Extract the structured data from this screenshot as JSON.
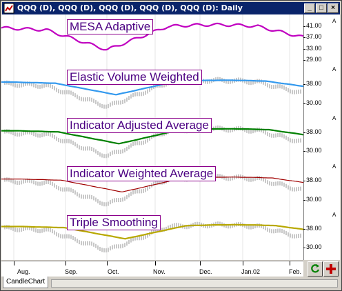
{
  "window": {
    "title": "QQQ (D), QQQ (D), QQQ (D), QQQ (D), QQQ (D): Daily",
    "minimize_label": "_",
    "maximize_label": "□",
    "close_label": "×"
  },
  "panes": [
    {
      "label": "MESA Adaptive",
      "color": "#c000c0",
      "ticks": [
        "41.00",
        "37.00",
        "33.00",
        "29.00"
      ],
      "scale_marker": "A"
    },
    {
      "label": "Elastic Volume Weighted",
      "color": "#3399ee",
      "ticks": [
        "38.00",
        "30.00"
      ],
      "scale_marker": "A"
    },
    {
      "label": "Indicator Adjusted Average",
      "color": "#008000",
      "ticks": [
        "38.00",
        "30.00"
      ],
      "scale_marker": "A"
    },
    {
      "label": "Indicator Weighted Average",
      "color": "#a00000",
      "ticks": [
        "38.00",
        "30.00"
      ],
      "scale_marker": "A"
    },
    {
      "label": "Triple Smoothing",
      "color": "#b8a800",
      "ticks": [
        "38.00",
        "30.00"
      ],
      "scale_marker": "A"
    }
  ],
  "xaxis": {
    "labels": [
      "Aug.",
      "Sep.",
      "Oct.",
      "Nov.",
      "Dec.",
      "Jan.02",
      "Feb."
    ]
  },
  "footer": {
    "tab_label": "CandleChart"
  },
  "icons": {
    "app": "app-icon",
    "refresh": "refresh-icon",
    "add": "add-icon"
  }
}
